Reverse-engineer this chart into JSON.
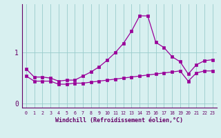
{
  "x": [
    0,
    1,
    2,
    3,
    4,
    5,
    6,
    7,
    8,
    9,
    10,
    11,
    12,
    13,
    14,
    15,
    16,
    17,
    18,
    19,
    20,
    21,
    22,
    23
  ],
  "line1": [
    0.68,
    0.52,
    0.52,
    0.5,
    0.44,
    0.46,
    0.46,
    0.54,
    0.62,
    0.72,
    0.85,
    1.0,
    1.18,
    1.42,
    1.72,
    1.72,
    1.2,
    1.1,
    0.92,
    0.82,
    0.58,
    0.76,
    0.84,
    0.86
  ],
  "line2": [
    0.54,
    0.44,
    0.44,
    0.44,
    0.38,
    0.38,
    0.4,
    0.4,
    0.42,
    0.44,
    0.46,
    0.48,
    0.5,
    0.52,
    0.54,
    0.56,
    0.58,
    0.6,
    0.62,
    0.64,
    0.44,
    0.6,
    0.64,
    0.64
  ],
  "color": "#990099",
  "bg_color": "#d8f0f0",
  "grid_color": "#99cccc",
  "axis_color": "#660066",
  "ytick_labels": [
    "0",
    "1"
  ],
  "ytick_vals": [
    0.0,
    1.0
  ],
  "ylim": [
    -0.08,
    1.95
  ],
  "xlim": [
    -0.5,
    23.5
  ],
  "xlabel": "Windchill (Refroidissement éolien,°C)",
  "tick_color": "#660066",
  "markersize": 2.5,
  "linewidth": 0.9
}
